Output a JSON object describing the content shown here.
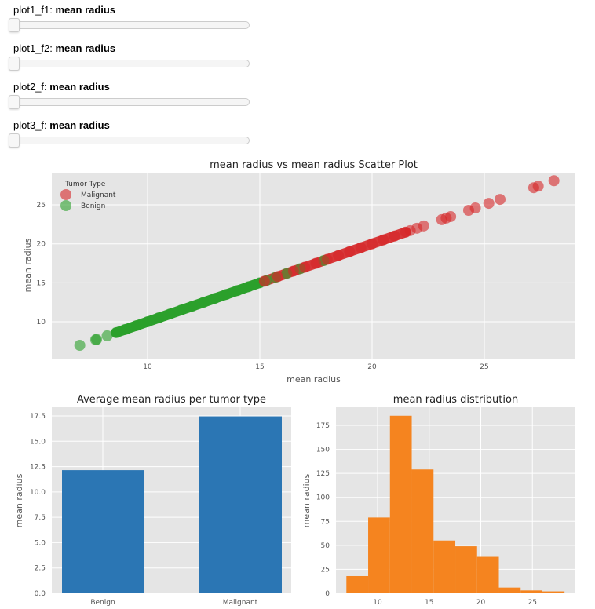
{
  "widgets": [
    {
      "name": "plot1_f1",
      "prefix": "plot1_f1: ",
      "value": "mean radius"
    },
    {
      "name": "plot1_f2",
      "prefix": "plot1_f2: ",
      "value": "mean radius"
    },
    {
      "name": "plot2_f",
      "prefix": "plot2_f: ",
      "value": "mean radius"
    },
    {
      "name": "plot3_f",
      "prefix": "plot3_f: ",
      "value": "mean radius"
    }
  ],
  "colors": {
    "malignant": "#d62728",
    "benign": "#2ca02c",
    "bar": "#2b76b4",
    "hist": "#f5841f",
    "axes_bg": "#e5e5e5",
    "grid": "#ffffff"
  },
  "chart_data": [
    {
      "type": "scatter",
      "title": "mean radius vs mean radius Scatter Plot",
      "xlabel": "mean radius",
      "ylabel": "mean radius",
      "xticks": [
        10,
        15,
        20,
        25
      ],
      "yticks": [
        10,
        15,
        20,
        25
      ],
      "xlim": [
        5.6,
        28.9
      ],
      "ylim": [
        5.6,
        29.0
      ],
      "legend": {
        "title": "Tumor Type",
        "position": "upper left",
        "entries": [
          "Malignant",
          "Benign"
        ]
      },
      "series": [
        {
          "name": "Benign",
          "color": "#2ca02c",
          "x": [
            6.98,
            7.69,
            7.73,
            8.2,
            8.6,
            9.0,
            9.5,
            10.0,
            10.5,
            11.0,
            11.5,
            12.0,
            12.5,
            13.0,
            13.5,
            14.0,
            14.5,
            15.0,
            15.3,
            15.7,
            16.2,
            16.8,
            17.85
          ],
          "y": [
            6.98,
            7.69,
            7.73,
            8.2,
            8.6,
            9.0,
            9.5,
            10.0,
            10.5,
            11.0,
            11.5,
            12.0,
            12.5,
            13.0,
            13.5,
            14.0,
            14.5,
            15.0,
            15.3,
            15.7,
            16.2,
            16.8,
            17.85
          ]
        },
        {
          "name": "Malignant",
          "color": "#d62728",
          "x": [
            15.2,
            15.8,
            16.5,
            17.0,
            17.5,
            18.0,
            18.5,
            19.0,
            19.5,
            20.0,
            20.5,
            21.0,
            21.5,
            21.7,
            22.0,
            22.3,
            23.1,
            23.3,
            23.5,
            24.3,
            24.6,
            25.2,
            25.7,
            27.2,
            27.4,
            28.1
          ],
          "y": [
            15.2,
            15.8,
            16.5,
            17.0,
            17.5,
            18.0,
            18.5,
            19.0,
            19.5,
            20.0,
            20.5,
            21.0,
            21.5,
            21.7,
            22.0,
            22.3,
            23.1,
            23.3,
            23.5,
            24.3,
            24.6,
            25.2,
            25.7,
            27.2,
            27.4,
            28.1
          ]
        }
      ],
      "grid": true
    },
    {
      "type": "bar",
      "title": "Average mean radius per tumor type",
      "xlabel": "",
      "ylabel": "mean radius",
      "categories": [
        "Benign",
        "Malignant"
      ],
      "values": [
        12.15,
        17.46
      ],
      "yticks": [
        "0.0",
        "2.5",
        "5.0",
        "7.5",
        "10.0",
        "12.5",
        "15.0",
        "17.5"
      ],
      "ylim": [
        0,
        18.3
      ],
      "grid": true
    },
    {
      "type": "bar",
      "subtype": "histogram",
      "title": "mean radius distribution",
      "xlabel": "",
      "ylabel": "mean radius",
      "bin_edges": [
        6.98,
        9.09,
        11.2,
        13.31,
        15.42,
        17.53,
        19.64,
        21.75,
        23.86,
        25.97,
        28.11
      ],
      "values": [
        18,
        79,
        185,
        129,
        55,
        49,
        38,
        6,
        3,
        2
      ],
      "xticks": [
        10,
        15,
        20,
        25
      ],
      "yticks": [
        0,
        25,
        50,
        75,
        100,
        125,
        150,
        175
      ],
      "xlim": [
        5.93,
        29.16
      ],
      "ylim": [
        0,
        194
      ],
      "grid": true
    }
  ]
}
